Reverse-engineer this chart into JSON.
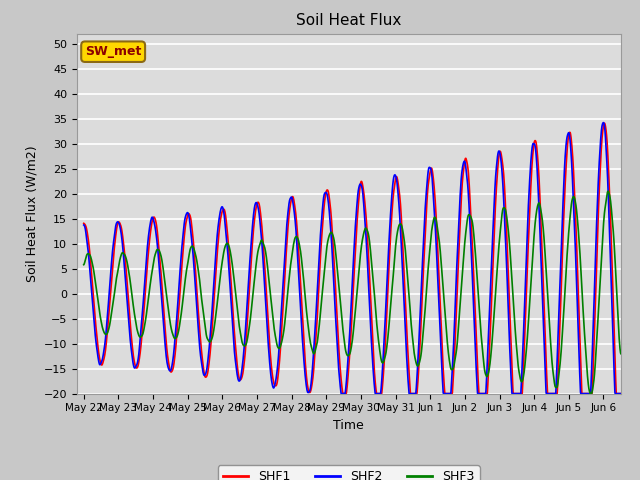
{
  "title": "Soil Heat Flux",
  "ylabel": "Soil Heat Flux (W/m2)",
  "xlabel": "Time",
  "ylim": [
    -20,
    52
  ],
  "yticks": [
    -20,
    -15,
    -10,
    -5,
    0,
    5,
    10,
    15,
    20,
    25,
    30,
    35,
    40,
    45,
    50
  ],
  "series_colors": [
    "red",
    "blue",
    "green"
  ],
  "series_labels": [
    "SHF1",
    "SHF2",
    "SHF3"
  ],
  "series_lw": [
    1.2,
    1.2,
    1.2
  ],
  "fig_bg": "#c8c8c8",
  "axes_bg": "#dcdcdc",
  "grid_color": "white",
  "annotation_text": "SW_met",
  "annotation_color": "#8B0000",
  "annotation_bg": "#FFD700",
  "tick_labels": [
    "May 22",
    "May 23",
    "May 24",
    "May 25",
    "May 26",
    "May 27",
    "May 28",
    "May 29",
    "May 30",
    "May 31",
    "Jun 1",
    "Jun 2",
    "Jun 3",
    "Jun 4",
    "Jun 5",
    "Jun 6"
  ],
  "tick_positions": [
    0,
    1,
    2,
    3,
    4,
    5,
    6,
    7,
    8,
    9,
    10,
    11,
    12,
    13,
    14,
    15
  ]
}
